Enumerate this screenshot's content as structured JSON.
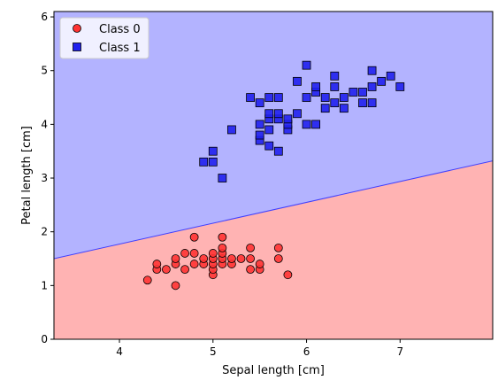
{
  "chart_data": {
    "type": "scatter",
    "xlabel": "Sepal length [cm]",
    "ylabel": "Petal length [cm]",
    "xlim": [
      3.3,
      7.99
    ],
    "ylim": [
      0,
      6.1
    ],
    "xticks": [
      4,
      5,
      6,
      7
    ],
    "yticks": [
      0,
      1,
      2,
      3,
      4,
      5,
      6
    ],
    "grid": false,
    "legend_position": "top-left",
    "decision_boundary": {
      "x": [
        3.3,
        7.99
      ],
      "y": [
        1.5,
        3.32
      ],
      "region_below_color": "#ffb3b3",
      "region_above_color": "#b3b3ff",
      "line_color": "#4040ff"
    },
    "series": [
      {
        "name": "Class 0",
        "marker": "circle",
        "color": "#ff3333",
        "edge": "#000000",
        "points": [
          [
            4.3,
            1.1
          ],
          [
            4.4,
            1.3
          ],
          [
            4.4,
            1.4
          ],
          [
            4.5,
            1.3
          ],
          [
            4.6,
            1.0
          ],
          [
            4.6,
            1.4
          ],
          [
            4.6,
            1.5
          ],
          [
            4.7,
            1.3
          ],
          [
            4.7,
            1.6
          ],
          [
            4.8,
            1.4
          ],
          [
            4.8,
            1.6
          ],
          [
            4.8,
            1.9
          ],
          [
            4.9,
            1.4
          ],
          [
            4.9,
            1.5
          ],
          [
            5.0,
            1.2
          ],
          [
            5.0,
            1.3
          ],
          [
            5.0,
            1.4
          ],
          [
            5.0,
            1.5
          ],
          [
            5.0,
            1.6
          ],
          [
            5.1,
            1.4
          ],
          [
            5.1,
            1.5
          ],
          [
            5.1,
            1.6
          ],
          [
            5.1,
            1.7
          ],
          [
            5.1,
            1.9
          ],
          [
            5.2,
            1.4
          ],
          [
            5.2,
            1.5
          ],
          [
            5.3,
            1.5
          ],
          [
            5.4,
            1.3
          ],
          [
            5.4,
            1.5
          ],
          [
            5.4,
            1.7
          ],
          [
            5.5,
            1.3
          ],
          [
            5.5,
            1.4
          ],
          [
            5.7,
            1.5
          ],
          [
            5.7,
            1.7
          ],
          [
            5.8,
            1.2
          ]
        ]
      },
      {
        "name": "Class 1",
        "marker": "square",
        "color": "#2020ee",
        "edge": "#000000",
        "points": [
          [
            4.9,
            3.3
          ],
          [
            5.0,
            3.3
          ],
          [
            5.0,
            3.5
          ],
          [
            5.1,
            3.0
          ],
          [
            5.2,
            3.9
          ],
          [
            5.4,
            4.5
          ],
          [
            5.5,
            3.7
          ],
          [
            5.5,
            3.8
          ],
          [
            5.5,
            4.0
          ],
          [
            5.5,
            4.4
          ],
          [
            5.6,
            3.6
          ],
          [
            5.6,
            3.9
          ],
          [
            5.6,
            4.1
          ],
          [
            5.6,
            4.2
          ],
          [
            5.6,
            4.5
          ],
          [
            5.7,
            3.5
          ],
          [
            5.7,
            4.1
          ],
          [
            5.7,
            4.2
          ],
          [
            5.7,
            4.5
          ],
          [
            5.8,
            3.9
          ],
          [
            5.8,
            4.0
          ],
          [
            5.8,
            4.1
          ],
          [
            5.9,
            4.2
          ],
          [
            5.9,
            4.8
          ],
          [
            6.0,
            4.0
          ],
          [
            6.0,
            4.5
          ],
          [
            6.0,
            5.1
          ],
          [
            6.1,
            4.0
          ],
          [
            6.1,
            4.6
          ],
          [
            6.1,
            4.7
          ],
          [
            6.2,
            4.3
          ],
          [
            6.2,
            4.5
          ],
          [
            6.3,
            4.4
          ],
          [
            6.3,
            4.7
          ],
          [
            6.3,
            4.9
          ],
          [
            6.4,
            4.3
          ],
          [
            6.4,
            4.5
          ],
          [
            6.5,
            4.6
          ],
          [
            6.6,
            4.4
          ],
          [
            6.6,
            4.6
          ],
          [
            6.7,
            4.4
          ],
          [
            6.7,
            4.7
          ],
          [
            6.7,
            5.0
          ],
          [
            6.8,
            4.8
          ],
          [
            6.9,
            4.9
          ],
          [
            7.0,
            4.7
          ]
        ]
      }
    ]
  }
}
